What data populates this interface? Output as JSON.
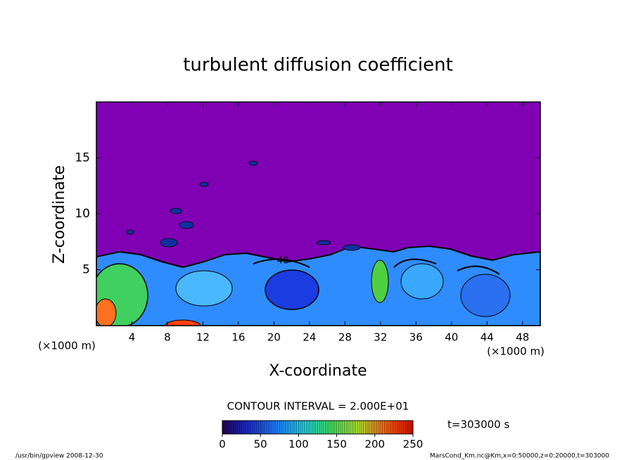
{
  "chart_data": {
    "type": "contour",
    "title": "turbulent diffusion coefficient",
    "x_label": "X-coordinate",
    "y_label": "Z-coordinate",
    "x_unit_label": "(×1000 m)",
    "y_unit_label": "(×1000 m)",
    "xlim": [
      0,
      50
    ],
    "xticks": [
      4,
      8,
      12,
      16,
      20,
      24,
      28,
      32,
      36,
      40,
      44,
      48
    ],
    "ylim": [
      0,
      20
    ],
    "yticks": [
      5,
      10,
      15
    ],
    "background_color": "#8000b4",
    "contour_labels": [
      {
        "level": 40,
        "x": 21,
        "z": 5.8
      }
    ],
    "contour_interval_label": "CONTOUR INTERVAL = 2.000E+01",
    "colorbar": {
      "lim": [
        0,
        250
      ],
      "ticks": [
        0,
        50,
        100,
        150,
        200,
        250
      ],
      "colors": [
        "#20005a",
        "#1830d0",
        "#2080ff",
        "#20d0e0",
        "#40e060",
        "#b0e030",
        "#ff6010",
        "#d01000"
      ]
    },
    "time_label": "t=303000 s",
    "footer_left": "/usr/bin/gpview   2008-12-30",
    "footer_right": "MarsCond_Km.nc@Km,x=0:50000,z=0:20000,t=303000"
  }
}
